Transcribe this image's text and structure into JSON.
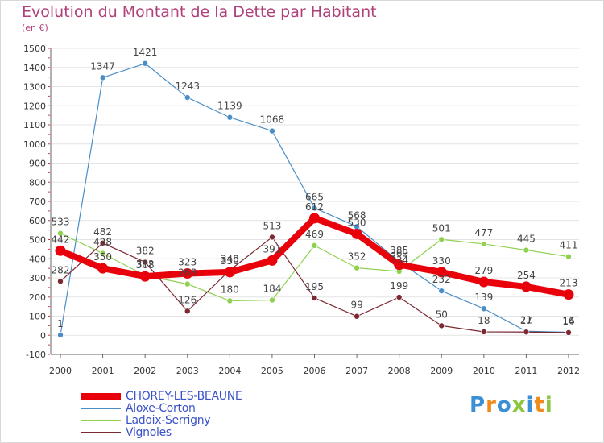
{
  "title": "Evolution du Montant de la Dette par Habitant",
  "subtitle": "(en €)",
  "logo": {
    "text": "Proxiti",
    "colors": [
      "#3b8fd4",
      "#f08a1c",
      "#3b8fd4",
      "#8cc63f",
      "#3b8fd4",
      "#f08a1c",
      "#8cc63f"
    ]
  },
  "chart_data": {
    "type": "line",
    "title": "Evolution du Montant de la Dette par Habitant",
    "ylabel": "(en €)",
    "xlabel": "",
    "x": [
      "2000",
      "2001",
      "2002",
      "2003",
      "2004",
      "2005",
      "2006",
      "2007",
      "2008",
      "2009",
      "2010",
      "2011",
      "2012"
    ],
    "ylim": [
      -100,
      1500
    ],
    "yticks": [
      -100,
      0,
      100,
      200,
      300,
      400,
      500,
      600,
      700,
      800,
      900,
      1000,
      1100,
      1200,
      1300,
      1400,
      1500
    ],
    "grid": "horizontal",
    "legend_position": "bottom-left",
    "series": [
      {
        "name": "CHOREY-LES-BEAUNE",
        "color": "#e8000b",
        "values": [
          442,
          350,
          308,
          323,
          330,
          391,
          612,
          530,
          369,
          330,
          279,
          254,
          213
        ]
      },
      {
        "name": "Aloxe-Corton",
        "color": "#4a8ec8",
        "values": [
          1,
          1347,
          1421,
          1243,
          1139,
          1068,
          665,
          568,
          385,
          232,
          139,
          21,
          16
        ]
      },
      {
        "name": "Ladoix-Serrigny",
        "color": "#8fd14f",
        "values": [
          533,
          428,
          312,
          268,
          180,
          184,
          469,
          352,
          334,
          501,
          477,
          445,
          411
        ]
      },
      {
        "name": "Vignoles",
        "color": "#7b2830",
        "values": [
          282,
          482,
          382,
          126,
          340,
          513,
          195,
          99,
          199,
          50,
          18,
          17,
          14
        ]
      }
    ]
  }
}
